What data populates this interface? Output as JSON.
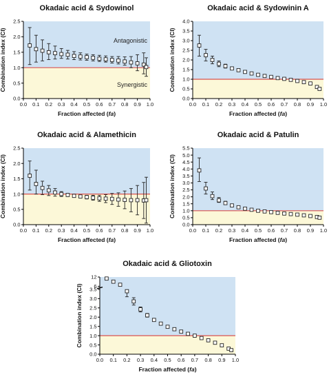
{
  "colors": {
    "antagonistic_region": "#cfe2f3",
    "synergistic_region": "#fcf8d8",
    "reference_line": "#d9534f",
    "marker_fill": "#ffffff",
    "marker_stroke": "#222222",
    "errorbar": "#222222"
  },
  "shared": {
    "xlabel_main": "Fraction affected (",
    "xlabel_italic": "fa",
    "xlabel_close": ")",
    "ylabel": "Combination index (CI)"
  },
  "chart_data": [
    {
      "type": "scatter",
      "title": "Okadaic acid & Sydowinol",
      "xlabel": "Fraction affected (fa)",
      "ylabel": "Combination index (CI)",
      "xlim": [
        0.0,
        1.0
      ],
      "ylim": [
        0.0,
        2.5
      ],
      "xticks": [
        0.0,
        0.1,
        0.2,
        0.3,
        0.4,
        0.5,
        0.6,
        0.7,
        0.8,
        0.9,
        1.0
      ],
      "xtick_labels": [
        "0.0",
        "0.1",
        "0.2",
        "0.3",
        "0.4",
        "0.5",
        "0.6",
        "0.7",
        "0.8",
        "0.9",
        "1.0"
      ],
      "yticks": [
        0.0,
        0.5,
        1.0,
        1.5,
        2.0,
        2.5
      ],
      "ytick_labels": [
        "0.0",
        "0.5",
        "1.0",
        "1.5",
        "2.0",
        "2.5"
      ],
      "reference_line": 1.0,
      "region_labels": {
        "above": "Antagonistic",
        "below": "Synergistic"
      },
      "x": [
        0.05,
        0.1,
        0.15,
        0.2,
        0.25,
        0.3,
        0.35,
        0.4,
        0.45,
        0.5,
        0.55,
        0.6,
        0.65,
        0.7,
        0.75,
        0.8,
        0.85,
        0.9,
        0.95,
        0.97
      ],
      "y": [
        1.72,
        1.6,
        1.55,
        1.5,
        1.47,
        1.44,
        1.42,
        1.38,
        1.36,
        1.34,
        1.32,
        1.29,
        1.27,
        1.25,
        1.23,
        1.2,
        1.17,
        1.14,
        1.1,
        1.02
      ],
      "yerr_low": [
        1.1,
        1.18,
        1.22,
        1.26,
        1.28,
        1.3,
        1.28,
        1.26,
        1.25,
        1.24,
        1.22,
        1.2,
        1.18,
        1.15,
        1.12,
        1.08,
        1.0,
        0.9,
        0.8,
        0.72
      ],
      "yerr_high": [
        2.3,
        2.05,
        1.9,
        1.78,
        1.7,
        1.62,
        1.56,
        1.52,
        1.48,
        1.44,
        1.42,
        1.4,
        1.38,
        1.36,
        1.36,
        1.35,
        1.36,
        1.42,
        1.48,
        1.32
      ]
    },
    {
      "type": "scatter",
      "title": "Okadaic acid & Sydowinin A",
      "xlabel": "Fraction affected (fa)",
      "ylabel": "Combination index (CI)",
      "xlim": [
        0.0,
        1.0
      ],
      "ylim": [
        0.0,
        4.0
      ],
      "xticks": [
        0.0,
        0.1,
        0.2,
        0.3,
        0.4,
        0.5,
        0.6,
        0.7,
        0.8,
        0.9,
        1.0
      ],
      "xtick_labels": [
        "0.0",
        "0.1",
        "0.2",
        "0.3",
        "0.4",
        "0.5",
        "0.6",
        "0.7",
        "0.8",
        "0.9",
        "1.0"
      ],
      "yticks": [
        0.0,
        0.5,
        1.0,
        1.5,
        2.0,
        2.5,
        3.0,
        3.5,
        4.0
      ],
      "ytick_labels": [
        "0.0",
        "0.5",
        "1.0",
        "1.5",
        "2.0",
        "2.5",
        "3.0",
        "3.5",
        "4.0"
      ],
      "reference_line": 1.0,
      "x": [
        0.05,
        0.1,
        0.15,
        0.2,
        0.25,
        0.3,
        0.35,
        0.4,
        0.45,
        0.5,
        0.55,
        0.6,
        0.65,
        0.7,
        0.75,
        0.8,
        0.85,
        0.9,
        0.95,
        0.97
      ],
      "y": [
        2.75,
        2.25,
        2.0,
        1.8,
        1.68,
        1.56,
        1.47,
        1.38,
        1.3,
        1.23,
        1.17,
        1.12,
        1.06,
        1.02,
        0.97,
        0.91,
        0.85,
        0.78,
        0.6,
        0.5
      ],
      "yerr_low": [
        2.2,
        1.95,
        1.8,
        1.65,
        1.58,
        1.5,
        1.43,
        1.35,
        1.28,
        1.21,
        1.15,
        1.1,
        1.04,
        1.0,
        0.95,
        0.89,
        0.82,
        0.75,
        0.55,
        0.45
      ],
      "yerr_high": [
        3.28,
        2.55,
        2.2,
        1.95,
        1.78,
        1.62,
        1.51,
        1.41,
        1.32,
        1.25,
        1.19,
        1.14,
        1.08,
        1.04,
        0.99,
        0.93,
        0.88,
        0.81,
        0.65,
        0.55
      ]
    },
    {
      "type": "scatter",
      "title": "Okadaic acid & Alamethicin",
      "xlabel": "Fraction affected (fa)",
      "ylabel": "Combination index (CI)",
      "xlim": [
        0.0,
        1.0
      ],
      "ylim": [
        0.0,
        2.5
      ],
      "xticks": [
        0.0,
        0.1,
        0.2,
        0.3,
        0.4,
        0.5,
        0.6,
        0.7,
        0.8,
        0.9,
        1.0
      ],
      "xtick_labels": [
        "0.0",
        "0.1",
        "0.2",
        "0.3",
        "0.4",
        "0.5",
        "0.6",
        "0.7",
        "0.8",
        "0.9",
        "1.0"
      ],
      "yticks": [
        0.0,
        0.5,
        1.0,
        1.5,
        2.0,
        2.5
      ],
      "ytick_labels": [
        "0.0",
        "0.5",
        "1.0",
        "1.5",
        "2.0",
        "2.5"
      ],
      "reference_line": 1.0,
      "x": [
        0.05,
        0.1,
        0.15,
        0.2,
        0.25,
        0.3,
        0.35,
        0.4,
        0.45,
        0.5,
        0.55,
        0.6,
        0.65,
        0.7,
        0.75,
        0.8,
        0.85,
        0.9,
        0.95,
        0.97
      ],
      "y": [
        1.6,
        1.33,
        1.2,
        1.12,
        1.05,
        1.0,
        0.97,
        0.94,
        0.92,
        0.9,
        0.88,
        0.86,
        0.85,
        0.84,
        0.82,
        0.81,
        0.8,
        0.8,
        0.79,
        0.8
      ],
      "yerr_low": [
        1.13,
        1.0,
        0.98,
        0.95,
        0.93,
        0.92,
        0.92,
        0.9,
        0.88,
        0.84,
        0.8,
        0.76,
        0.72,
        0.66,
        0.6,
        0.52,
        0.42,
        0.32,
        0.2,
        0.05
      ],
      "yerr_high": [
        2.08,
        1.78,
        1.42,
        1.28,
        1.18,
        1.08,
        1.02,
        0.98,
        0.96,
        0.96,
        0.96,
        0.96,
        0.98,
        1.02,
        1.04,
        1.1,
        1.18,
        1.28,
        1.38,
        1.55
      ]
    },
    {
      "type": "scatter",
      "title": "Okadaic acid & Patulin",
      "xlabel": "Fraction affected (fa)",
      "ylabel": "Combination index (CI)",
      "xlim": [
        0.0,
        1.0
      ],
      "ylim": [
        0.0,
        5.5
      ],
      "xticks": [
        0.0,
        0.1,
        0.2,
        0.3,
        0.4,
        0.5,
        0.6,
        0.7,
        0.8,
        0.9,
        1.0
      ],
      "xtick_labels": [
        "0.0",
        "0.1",
        "0.2",
        "0.3",
        "0.4",
        "0.5",
        "0.6",
        "0.7",
        "0.8",
        "0.9",
        "1.0"
      ],
      "yticks": [
        0.0,
        0.5,
        1.0,
        1.5,
        2.0,
        2.5,
        3.0,
        3.5,
        4.0,
        4.5,
        5.0,
        5.5
      ],
      "ytick_labels": [
        "0.0",
        "0.5",
        "1.0",
        "1.5",
        "2.0",
        "2.5",
        "3.0",
        "3.5",
        "4.0",
        "4.5",
        "5.0",
        "5.5"
      ],
      "reference_line": 1.0,
      "x": [
        0.05,
        0.1,
        0.15,
        0.2,
        0.25,
        0.3,
        0.35,
        0.4,
        0.45,
        0.5,
        0.55,
        0.6,
        0.65,
        0.7,
        0.75,
        0.8,
        0.85,
        0.9,
        0.95,
        0.97
      ],
      "y": [
        3.9,
        2.6,
        2.05,
        1.75,
        1.55,
        1.38,
        1.25,
        1.15,
        1.07,
        1.0,
        0.95,
        0.9,
        0.85,
        0.8,
        0.76,
        0.72,
        0.67,
        0.62,
        0.55,
        0.5
      ],
      "yerr_low": [
        3.1,
        2.2,
        1.8,
        1.6,
        1.45,
        1.3,
        1.2,
        1.1,
        1.04,
        0.97,
        0.92,
        0.87,
        0.82,
        0.77,
        0.73,
        0.69,
        0.64,
        0.59,
        0.5,
        0.45
      ],
      "yerr_high": [
        4.8,
        3.05,
        2.35,
        1.95,
        1.68,
        1.47,
        1.3,
        1.2,
        1.1,
        1.03,
        0.98,
        0.93,
        0.88,
        0.83,
        0.79,
        0.75,
        0.7,
        0.65,
        0.6,
        0.55
      ]
    },
    {
      "type": "scatter",
      "title": "Okadaic acid & Gliotoxin",
      "xlabel": "Fraction affected (fa)",
      "ylabel": "Combination index (CI)",
      "xlim": [
        0.0,
        1.0
      ],
      "ylim": [
        0.0,
        12.0
      ],
      "axis_break": {
        "lower_max": 3.5,
        "upper_min": 6.0,
        "upper_max": 12.0
      },
      "xticks": [
        0.0,
        0.1,
        0.2,
        0.3,
        0.4,
        0.5,
        0.6,
        0.7,
        0.8,
        0.9,
        1.0
      ],
      "xtick_labels": [
        "0.0",
        "0.1",
        "0.2",
        "0.3",
        "0.4",
        "0.5",
        "0.6",
        "0.7",
        "0.8",
        "0.9",
        "1.0"
      ],
      "yticks": [
        0.0,
        0.5,
        1.0,
        1.5,
        2.0,
        2.5,
        3.0,
        3.5,
        6.0,
        12.0
      ],
      "ytick_labels": [
        "0.0",
        "0.5",
        "1.0",
        "1.5",
        "2.0",
        "2.5",
        "3.0",
        "3.5",
        "6",
        "12"
      ],
      "reference_line": 1.0,
      "x": [
        0.05,
        0.1,
        0.15,
        0.2,
        0.25,
        0.3,
        0.35,
        0.4,
        0.45,
        0.5,
        0.55,
        0.6,
        0.65,
        0.7,
        0.75,
        0.8,
        0.85,
        0.9,
        0.95,
        0.97
      ],
      "y": [
        11.0,
        9.0,
        7.0,
        3.4,
        2.85,
        2.42,
        2.1,
        1.85,
        1.65,
        1.48,
        1.35,
        1.22,
        1.1,
        1.0,
        0.87,
        0.75,
        0.62,
        0.48,
        0.3,
        0.22
      ],
      "yerr_low": [
        10.5,
        8.6,
        6.6,
        3.1,
        2.65,
        2.28,
        2.0,
        1.77,
        1.58,
        1.43,
        1.31,
        1.19,
        1.08,
        0.98,
        0.85,
        0.73,
        0.6,
        0.46,
        0.28,
        0.2
      ],
      "yerr_high": [
        11.5,
        9.4,
        7.4,
        3.75,
        3.05,
        2.55,
        2.2,
        1.93,
        1.72,
        1.53,
        1.39,
        1.25,
        1.12,
        1.02,
        0.89,
        0.77,
        0.64,
        0.5,
        0.32,
        0.24
      ]
    }
  ]
}
